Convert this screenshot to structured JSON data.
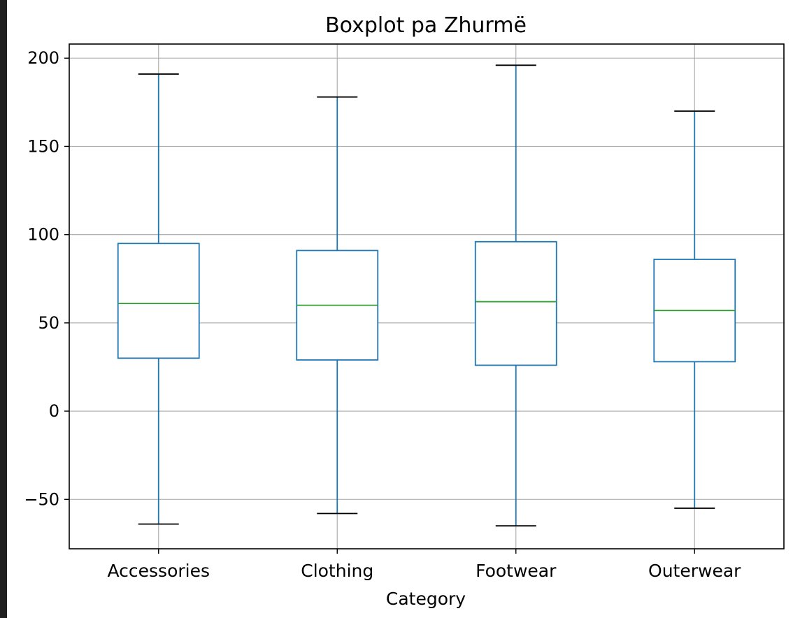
{
  "chart_data": {
    "type": "box",
    "title": "Boxplot pa Zhurmë",
    "xlabel": "Category",
    "ylabel": "",
    "ylim": [
      -78,
      208
    ],
    "yticks": [
      -50,
      0,
      50,
      100,
      150,
      200
    ],
    "ytick_labels": [
      "−50",
      "0",
      "50",
      "100",
      "150",
      "200"
    ],
    "grid": true,
    "categories": [
      "Accessories",
      "Clothing",
      "Footwear",
      "Outerwear"
    ],
    "boxes": [
      {
        "category": "Accessories",
        "whisker_low": -64,
        "q1": 30,
        "median": 61,
        "q3": 95,
        "whisker_high": 191
      },
      {
        "category": "Clothing",
        "whisker_low": -58,
        "q1": 29,
        "median": 60,
        "q3": 91,
        "whisker_high": 178
      },
      {
        "category": "Footwear",
        "whisker_low": -65,
        "q1": 26,
        "median": 62,
        "q3": 96,
        "whisker_high": 196
      },
      {
        "category": "Outerwear",
        "whisker_low": -55,
        "q1": 28,
        "median": 57,
        "q3": 86,
        "whisker_high": 170
      }
    ],
    "colors": {
      "box": "#1f77b4",
      "median": "#2ca02c",
      "cap": "#000000",
      "grid": "#b0b0b0",
      "axes": "#000000"
    }
  }
}
